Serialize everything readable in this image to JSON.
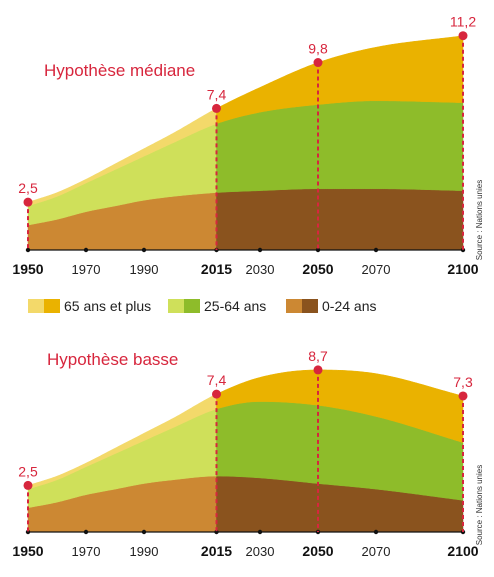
{
  "colors": {
    "old_light": "#f3d96a",
    "old_dark": "#eab200",
    "mid_light": "#cfe05a",
    "mid_dark": "#8ebc2a",
    "young_light": "#cc8833",
    "young_dark": "#8a531e",
    "accent": "#d7263d"
  },
  "legend": [
    {
      "label": "65 ans et plus"
    },
    {
      "label": "25-64 ans"
    },
    {
      "label": "0-24 ans"
    }
  ],
  "source": "Source : Nations unies",
  "chart_data": [
    {
      "type": "area",
      "title": "Hypothèse médiane",
      "x_ticks": [
        "1950",
        "1970",
        "1990",
        "2015",
        "2030",
        "2050",
        "2070",
        "2100"
      ],
      "x_bold": [
        "1950",
        "2015",
        "2050",
        "2100"
      ],
      "xlim": [
        1950,
        2100
      ],
      "ylim": [
        0,
        11.5
      ],
      "stacked": true,
      "x": [
        1950,
        1960,
        1970,
        1980,
        1990,
        2000,
        2015,
        2030,
        2050,
        2070,
        2100
      ],
      "series": [
        {
          "name": "0-24 ans",
          "values": [
            1.3,
            1.6,
            2.0,
            2.3,
            2.6,
            2.8,
            3.0,
            3.1,
            3.2,
            3.2,
            3.1
          ]
        },
        {
          "name": "25-64 ans",
          "values": [
            1.0,
            1.2,
            1.5,
            1.9,
            2.3,
            2.8,
            3.6,
            4.1,
            4.4,
            4.6,
            4.6
          ]
        },
        {
          "name": "65 ans et plus",
          "values": [
            0.2,
            0.2,
            0.2,
            0.3,
            0.4,
            0.5,
            0.8,
            1.3,
            2.2,
            2.8,
            3.5
          ]
        }
      ],
      "annotations": [
        {
          "x": 1950,
          "label": "2,5",
          "value": 2.5
        },
        {
          "x": 2015,
          "label": "7,4",
          "value": 7.4
        },
        {
          "x": 2050,
          "label": "9,8",
          "value": 9.8
        },
        {
          "x": 2100,
          "label": "11,2",
          "value": 11.2
        }
      ]
    },
    {
      "type": "area",
      "title": "Hypothèse basse",
      "x_ticks": [
        "1950",
        "1970",
        "1990",
        "2015",
        "2030",
        "2050",
        "2070",
        "2100"
      ],
      "x_bold": [
        "1950",
        "2015",
        "2050",
        "2100"
      ],
      "xlim": [
        1950,
        2100
      ],
      "ylim": [
        0,
        9.5
      ],
      "stacked": true,
      "x": [
        1950,
        1960,
        1970,
        1980,
        1990,
        2000,
        2015,
        2030,
        2050,
        2070,
        2100
      ],
      "series": [
        {
          "name": "0-24 ans",
          "values": [
            1.3,
            1.6,
            2.0,
            2.3,
            2.6,
            2.8,
            3.0,
            2.9,
            2.6,
            2.3,
            1.7
          ]
        },
        {
          "name": "25-64 ans",
          "values": [
            1.0,
            1.2,
            1.5,
            1.9,
            2.3,
            2.8,
            3.6,
            4.1,
            4.2,
            3.9,
            3.1
          ]
        },
        {
          "name": "65 ans et plus",
          "values": [
            0.2,
            0.2,
            0.2,
            0.3,
            0.4,
            0.5,
            0.8,
            1.3,
            1.9,
            2.3,
            2.5
          ]
        }
      ],
      "annotations": [
        {
          "x": 1950,
          "label": "2,5",
          "value": 2.5
        },
        {
          "x": 2015,
          "label": "7,4",
          "value": 7.4
        },
        {
          "x": 2050,
          "label": "8,7",
          "value": 8.7
        },
        {
          "x": 2100,
          "label": "7,3",
          "value": 7.3
        }
      ]
    }
  ]
}
